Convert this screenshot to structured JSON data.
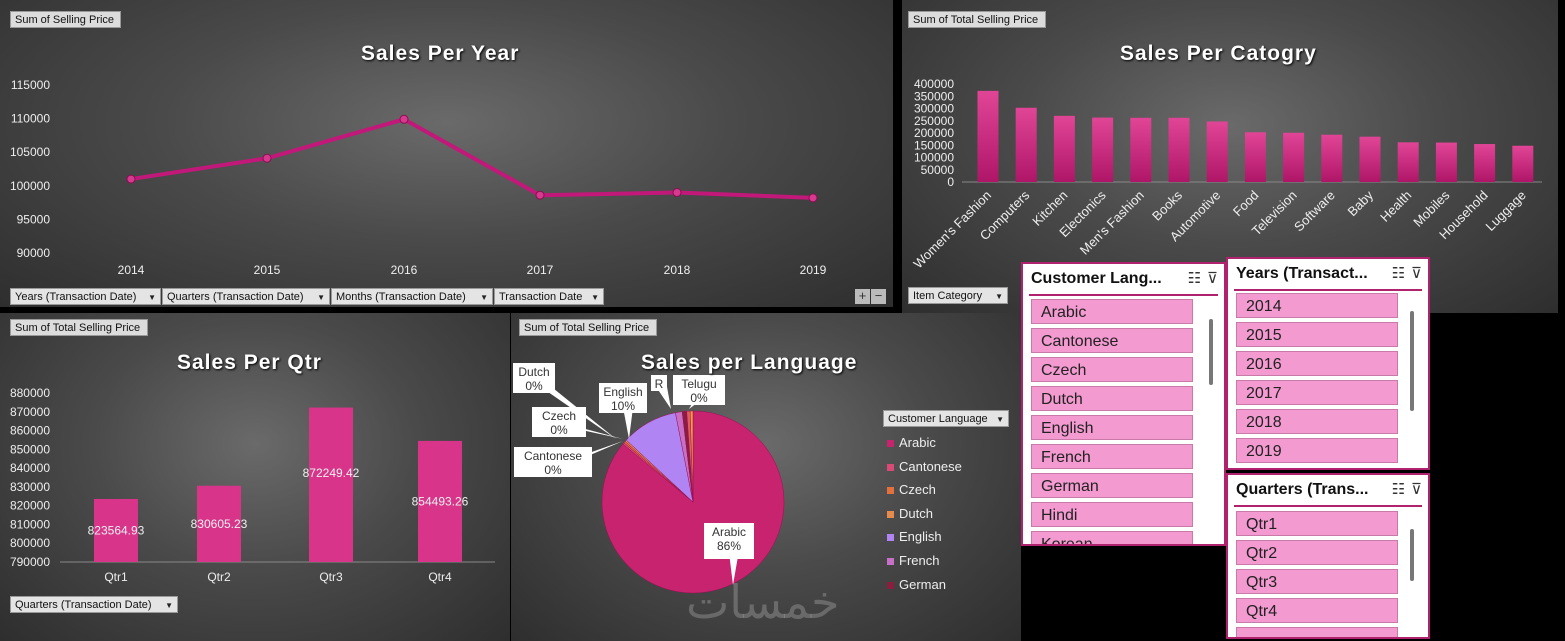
{
  "panel_year": {
    "field": "Sum of Selling Price",
    "title": "Sales Per Year",
    "filters": [
      "Years (Transaction Date)",
      "Quarters (Transaction Date)",
      "Months (Transaction Date)",
      "Transaction Date"
    ],
    "plus": "+",
    "minus": "−"
  },
  "panel_category": {
    "field": "Sum of Total Selling Price",
    "title": "Sales Per Catogry",
    "filter": "Item Category"
  },
  "panel_qtr": {
    "field": "Sum of Total Selling Price",
    "title": "Sales Per Qtr",
    "filter": "Quarters (Transaction Date)"
  },
  "panel_language": {
    "field": "Sum of Total Selling Price",
    "title": "Sales per Language",
    "legend_filter": "Customer Language"
  },
  "chart_data": [
    {
      "type": "line",
      "title": "Sales Per Year",
      "x": [
        "2014",
        "2015",
        "2016",
        "2017",
        "2018",
        "2019"
      ],
      "values": [
        101000,
        104100,
        109900,
        98600,
        99000,
        98200
      ],
      "ylim": [
        90000,
        115000
      ],
      "yticks": [
        "115000",
        "110000",
        "105000",
        "100000",
        "95000",
        "90000"
      ],
      "color": "#c2187a"
    },
    {
      "type": "bar",
      "title": "Sales Per Catogry",
      "categories": [
        "Women's Fashion",
        "Computers",
        "Kitchen",
        "Electonics",
        "Men's Fashion",
        "Books",
        "Automotive",
        "Food",
        "Television",
        "Software",
        "Baby",
        "Health",
        "Mobiles",
        "Household",
        "Luggage"
      ],
      "values": [
        372000,
        303000,
        270000,
        263000,
        262000,
        262000,
        247000,
        203000,
        201000,
        193000,
        185000,
        162000,
        161000,
        155000,
        148000
      ],
      "ylim": [
        0,
        400000
      ],
      "yticks": [
        "400000",
        "350000",
        "300000",
        "250000",
        "200000",
        "150000",
        "100000",
        "50000",
        "0"
      ],
      "color": "#d8348a"
    },
    {
      "type": "bar",
      "title": "Sales Per Qtr",
      "categories": [
        "Qtr1",
        "Qtr2",
        "Qtr3",
        "Qtr4"
      ],
      "values": [
        823564.93,
        830605.23,
        872249.42,
        854493.26
      ],
      "labels": [
        "823564.93",
        "830605.23",
        "872249.42",
        "854493.26"
      ],
      "ylim": [
        790000,
        880000
      ],
      "yticks": [
        "880000",
        "870000",
        "860000",
        "850000",
        "840000",
        "830000",
        "820000",
        "810000",
        "800000",
        "790000"
      ],
      "color": "#d8348a"
    },
    {
      "type": "pie",
      "title": "Sales per Language",
      "slices": [
        {
          "name": "Arabic",
          "value": 86,
          "color": "#c8236f"
        },
        {
          "name": "Cantonese",
          "value": 0.3,
          "color": "#d94a77"
        },
        {
          "name": "Czech",
          "value": 0.3,
          "color": "#e2713d"
        },
        {
          "name": "Dutch",
          "value": 0.3,
          "color": "#e68a4e"
        },
        {
          "name": "English",
          "value": 10,
          "color": "#b084f2"
        },
        {
          "name": "French",
          "value": 1.2,
          "color": "#c86fc8"
        },
        {
          "name": "German",
          "value": 0.8,
          "color": "#8a1e3e"
        },
        {
          "name": "R",
          "value": 0.6,
          "color": "#e05a6a"
        },
        {
          "name": "Telugu",
          "value": 0.5,
          "color": "#f0a030"
        }
      ],
      "callouts": [
        {
          "name": "Dutch",
          "pct": "0%"
        },
        {
          "name": "English",
          "pct": "10%"
        },
        {
          "name": "R",
          "pct": ""
        },
        {
          "name": "Telugu",
          "pct": "0%"
        },
        {
          "name": "Czech",
          "pct": "0%"
        },
        {
          "name": "Cantonese",
          "pct": "0%"
        },
        {
          "name": "Arabic",
          "pct": "86%"
        }
      ],
      "legend": [
        "Arabic",
        "Cantonese",
        "Czech",
        "Dutch",
        "English",
        "French",
        "German"
      ]
    }
  ],
  "slicer_language": {
    "title": "Customer Lang...",
    "items": [
      "Arabic",
      "Cantonese",
      "Czech",
      "Dutch",
      "English",
      "French",
      "German",
      "Hindi",
      "Korean"
    ]
  },
  "slicer_years": {
    "title": "Years (Transact...",
    "items": [
      "2014",
      "2015",
      "2016",
      "2017",
      "2018",
      "2019"
    ]
  },
  "slicer_quarters": {
    "title": "Quarters (Trans...",
    "items": [
      "Qtr1",
      "Qtr2",
      "Qtr3",
      "Qtr4",
      ""
    ]
  },
  "watermark": "خمسات"
}
